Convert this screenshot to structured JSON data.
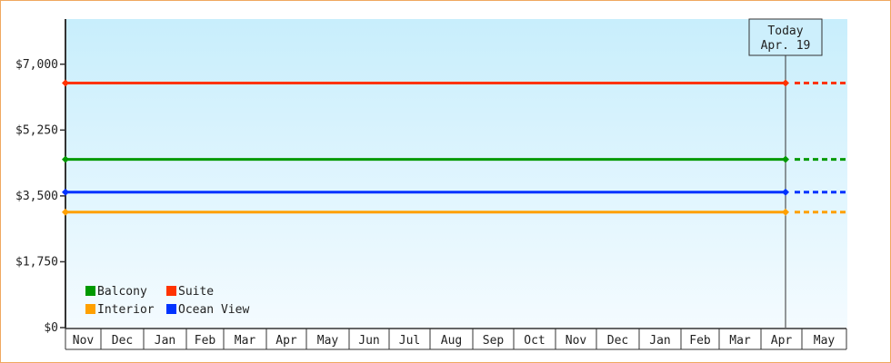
{
  "chart_data": {
    "type": "line",
    "ylim": [
      0,
      8200
    ],
    "yticks": [
      0,
      1750,
      3500,
      5250,
      7000
    ],
    "ytick_labels": [
      "$0",
      "$1,750",
      "$3,500",
      "$5,250",
      "$7,000"
    ],
    "x_categories": [
      "Nov",
      "Dec",
      "Jan",
      "Feb",
      "Mar",
      "Apr",
      "May",
      "Jun",
      "Jul",
      "Aug",
      "Sep",
      "Oct",
      "Nov",
      "Dec",
      "Jan",
      "Feb",
      "Mar",
      "Apr",
      "May"
    ],
    "today": {
      "line1": "Today",
      "line2": "Apr. 19",
      "month_index": 17,
      "day": 19
    },
    "grid": false,
    "legend_position": "bottom-left",
    "series": [
      {
        "name": "Balcony",
        "color": "#009900",
        "value": 4470
      },
      {
        "name": "Suite",
        "color": "#ff3300",
        "value": 6500
      },
      {
        "name": "Interior",
        "color": "#ffa000",
        "value": 3070
      },
      {
        "name": "Ocean View",
        "color": "#0033ff",
        "value": 3600
      }
    ],
    "note_projection": "dashed after today"
  }
}
